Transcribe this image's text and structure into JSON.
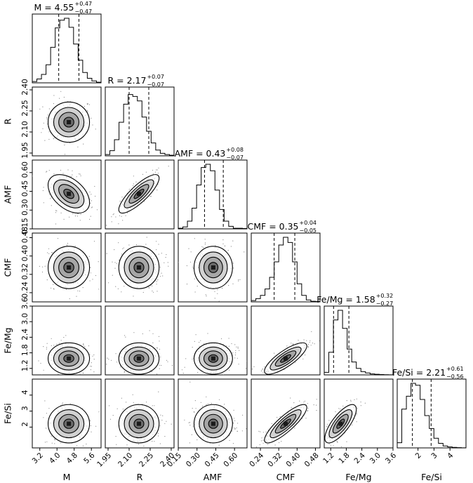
{
  "chart_data": {
    "type": "corner",
    "parameters": [
      {
        "name": "M",
        "title": "M = 4.55",
        "err_plus": "+0.47",
        "err_minus": "−0.47",
        "median": 4.55,
        "minus": 0.47,
        "plus": 0.47,
        "range": [
          2.85,
          6.05
        ],
        "ticks": [
          3.2,
          4.0,
          4.8,
          5.6
        ],
        "tick_labels": [
          "3.2",
          "4.0",
          "4.8",
          "5.6"
        ],
        "hist": [
          0.02,
          0.06,
          0.13,
          0.28,
          0.55,
          0.85,
          0.97,
          1.0,
          0.86,
          0.6,
          0.35,
          0.16,
          0.07,
          0.03,
          0.01
        ]
      },
      {
        "name": "R",
        "title": "R = 2.17",
        "err_plus": "+0.07",
        "err_minus": "−0.07",
        "median": 2.17,
        "minus": 0.07,
        "plus": 0.07,
        "range": [
          1.93,
          2.42
        ],
        "ticks": [
          1.95,
          2.1,
          2.25,
          2.4
        ],
        "tick_labels": [
          "1.95",
          "2.10",
          "2.25",
          "2.40"
        ],
        "hist": [
          0.02,
          0.08,
          0.25,
          0.52,
          0.8,
          0.95,
          0.92,
          0.85,
          0.6,
          0.38,
          0.2,
          0.09,
          0.04,
          0.02,
          0.01
        ]
      },
      {
        "name": "AMF",
        "title": "AMF = 0.43",
        "err_plus": "+0.08",
        "err_minus": "−0.07",
        "median": 0.43,
        "minus": 0.07,
        "plus": 0.08,
        "range": [
          0.15,
          0.7
        ],
        "ticks": [
          0.15,
          0.3,
          0.45,
          0.6
        ],
        "tick_labels": [
          "0.15",
          "0.30",
          "0.45",
          "0.60"
        ],
        "hist": [
          0.01,
          0.03,
          0.12,
          0.32,
          0.68,
          0.95,
          1.0,
          0.9,
          0.6,
          0.3,
          0.12,
          0.04,
          0.01,
          0.01,
          0.005
        ]
      },
      {
        "name": "CMF",
        "title": "CMF = 0.35",
        "err_plus": "+0.04",
        "err_minus": "−0.05",
        "median": 0.35,
        "minus": 0.05,
        "plus": 0.04,
        "range": [
          0.2,
          0.5
        ],
        "ticks": [
          0.24,
          0.32,
          0.4,
          0.48
        ],
        "tick_labels": [
          "0.24",
          "0.32",
          "0.40",
          "0.48"
        ],
        "hist": [
          0.02,
          0.05,
          0.1,
          0.2,
          0.38,
          0.62,
          0.88,
          1.0,
          0.92,
          0.62,
          0.28,
          0.1,
          0.03,
          0.01,
          0.005
        ]
      },
      {
        "name": "Fe/Mg",
        "title": "Fe/Mg = 1.58",
        "err_plus": "+0.32",
        "err_minus": "−0.27",
        "median": 1.58,
        "minus": 0.27,
        "plus": 0.32,
        "range": [
          0.95,
          3.6
        ],
        "ticks": [
          1.2,
          1.8,
          2.4,
          3.0,
          3.6
        ],
        "tick_labels": [
          "1.2",
          "1.8",
          "2.4",
          "3.0",
          "3.6"
        ],
        "hist": [
          0.04,
          0.35,
          0.85,
          1.0,
          0.72,
          0.4,
          0.2,
          0.1,
          0.05,
          0.03,
          0.015,
          0.01,
          0.005,
          0.003,
          0.002
        ]
      },
      {
        "name": "Fe/Si",
        "title": "Fe/Si = 2.21",
        "err_plus": "+0.61",
        "err_minus": "−0.56",
        "median": 2.21,
        "minus": 0.56,
        "plus": 0.61,
        "range": [
          0.7,
          5.0
        ],
        "ticks": [
          2,
          3,
          4
        ],
        "tick_labels": [
          "2",
          "3",
          "4"
        ],
        "hist": [
          0.08,
          0.6,
          0.8,
          1.0,
          0.97,
          0.75,
          0.5,
          0.3,
          0.15,
          0.07,
          0.03,
          0.015,
          0.008,
          0.004,
          0.002
        ]
      }
    ],
    "pair_correlations": {
      "1-0": 0.0,
      "2-0": -0.45,
      "2-1": 0.82,
      "3-0": 0.0,
      "3-1": 0.0,
      "3-2": 0.0,
      "4-0": 0.0,
      "4-1": 0.0,
      "4-2": 0.0,
      "4-3": 0.8,
      "5-0": 0.0,
      "5-1": 0.0,
      "5-2": 0.0,
      "5-3": 0.85,
      "5-4": 0.75
    },
    "quantile_lines": "dashed",
    "contours": "filled-grayscale"
  }
}
